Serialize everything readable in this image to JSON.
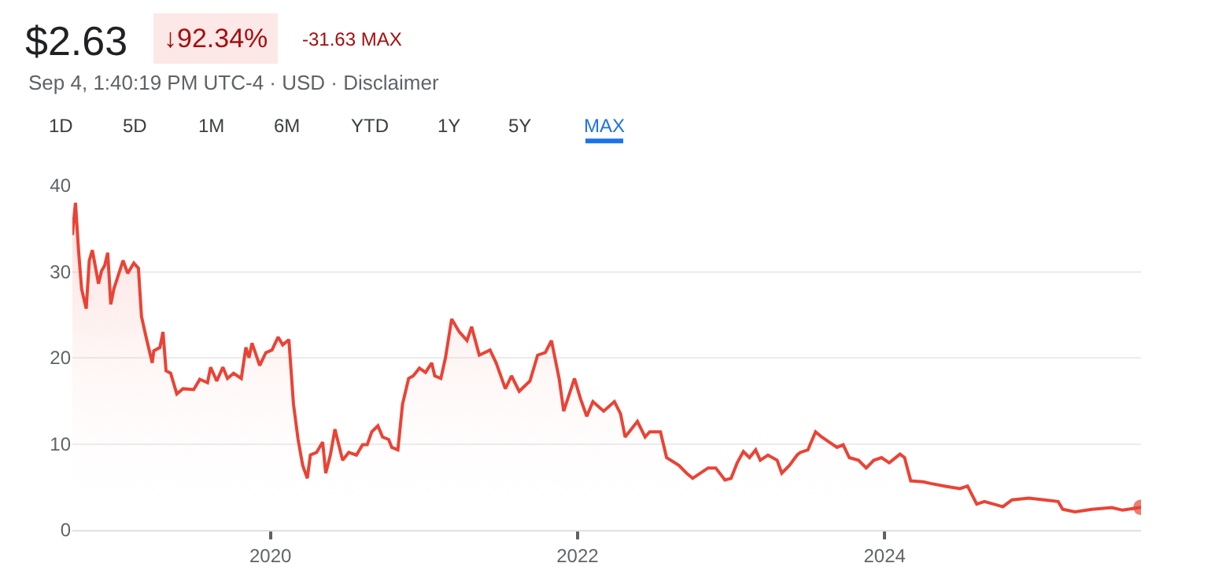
{
  "chart_data": {
    "type": "area",
    "title": "$2.63",
    "annotations": [
      "↓92.34%",
      "-31.63 MAX",
      "Sep 4, 1:40:19 PM UTC-4 · USD · Disclaimer",
      "1D",
      "5D",
      "1M",
      "6M",
      "YTD",
      "1Y",
      "5Y",
      "MAX"
    ],
    "xlim": [
      2018.71,
      2025.67
    ],
    "xticks": [
      2020,
      2022,
      2024
    ],
    "ylim": [
      0,
      40
    ],
    "yticks": [
      0,
      10,
      20,
      30,
      40
    ],
    "grid": "y",
    "legend": false,
    "series": [
      {
        "color": "#ea4335",
        "x": [
          2018.71,
          2018.73,
          2018.75,
          2018.77,
          2018.8,
          2018.82,
          2018.84,
          2018.88,
          2018.9,
          2018.92,
          2018.94,
          2018.96,
          2018.98,
          2019.04,
          2019.07,
          2019.11,
          2019.14,
          2019.16,
          2019.19,
          2019.23,
          2019.24,
          2019.28,
          2019.3,
          2019.32,
          2019.35,
          2019.39,
          2019.43,
          2019.5,
          2019.54,
          2019.59,
          2019.61,
          2019.65,
          2019.69,
          2019.72,
          2019.76,
          2019.81,
          2019.84,
          2019.86,
          2019.88,
          2019.93,
          2019.97,
          2020.01,
          2020.05,
          2020.08,
          2020.12,
          2020.15,
          2020.18,
          2020.21,
          2020.24,
          2020.26,
          2020.3,
          2020.34,
          2020.36,
          2020.39,
          2020.42,
          2020.47,
          2020.51,
          2020.56,
          2020.6,
          2020.63,
          2020.66,
          2020.7,
          2020.73,
          2020.77,
          2020.79,
          2020.83,
          2020.86,
          2020.9,
          2020.93,
          2020.97,
          2021.01,
          2021.05,
          2021.07,
          2021.11,
          2021.14,
          2021.18,
          2021.23,
          2021.28,
          2021.31,
          2021.36,
          2021.43,
          2021.47,
          2021.53,
          2021.57,
          2021.62,
          2021.69,
          2021.74,
          2021.79,
          2021.83,
          2021.88,
          2021.91,
          2021.98,
          2022.02,
          2022.06,
          2022.1,
          2022.17,
          2022.24,
          2022.28,
          2022.31,
          2022.39,
          2022.44,
          2022.47,
          2022.54,
          2022.58,
          2022.66,
          2022.71,
          2022.75,
          2022.85,
          2022.9,
          2022.96,
          2023.0,
          2023.04,
          2023.08,
          2023.12,
          2023.16,
          2023.19,
          2023.24,
          2023.3,
          2023.33,
          2023.38,
          2023.43,
          2023.45,
          2023.5,
          2023.55,
          2023.59,
          2023.64,
          2023.69,
          2023.73,
          2023.77,
          2023.83,
          2023.88,
          2023.93,
          2023.98,
          2024.03,
          2024.1,
          2024.13,
          2024.17,
          2024.25,
          2024.3,
          2024.39,
          2024.49,
          2024.54,
          2024.6,
          2024.65,
          2024.77,
          2024.83,
          2024.94,
          2025.04,
          2025.13,
          2025.16,
          2025.24,
          2025.35,
          2025.48,
          2025.55,
          2025.67
        ],
        "values": [
          34.26,
          38,
          32.5,
          28,
          25.7,
          31.3,
          32.5,
          28.6,
          30.1,
          30.7,
          32.2,
          26.2,
          28,
          31.3,
          29.8,
          31,
          30.4,
          24.8,
          22.4,
          19.4,
          20.8,
          21.2,
          23,
          18.5,
          18.2,
          15.8,
          16.4,
          16.3,
          17.5,
          17.1,
          18.9,
          17.3,
          18.9,
          17.6,
          18.2,
          17.6,
          21.2,
          20,
          21.7,
          19.1,
          20.6,
          20.9,
          22.4,
          21.5,
          22.1,
          14.6,
          10.5,
          7.5,
          6,
          8.7,
          9,
          10.2,
          6.6,
          8.7,
          11.7,
          8.1,
          9,
          8.7,
          9.9,
          9.9,
          11.4,
          12.1,
          10.8,
          10.5,
          9.6,
          9.3,
          14.6,
          17.6,
          17.9,
          18.8,
          18.3,
          19.4,
          17.9,
          17.6,
          20,
          24.5,
          23,
          22,
          23.6,
          20.3,
          20.9,
          19.4,
          16.4,
          17.9,
          16.1,
          17.3,
          20.3,
          20.6,
          22,
          17.6,
          13.8,
          17.6,
          15.2,
          13.2,
          14.9,
          13.8,
          14.9,
          13.5,
          10.8,
          12.6,
          10.8,
          11.4,
          11.4,
          8.4,
          7.5,
          6.6,
          6,
          7.2,
          7.2,
          5.8,
          6,
          7.8,
          9.1,
          8.4,
          9.3,
          8.1,
          8.7,
          8.1,
          6.6,
          7.5,
          8.7,
          9,
          9.3,
          11.4,
          10.8,
          10.2,
          9.6,
          9.9,
          8.4,
          8.1,
          7.2,
          8.1,
          8.4,
          7.8,
          8.8,
          8.4,
          5.7,
          5.6,
          5.4,
          5.1,
          4.8,
          5.1,
          3,
          3.3,
          2.7,
          3.5,
          3.7,
          3.5,
          3.3,
          2.4,
          2.1,
          2.4,
          2.6,
          2.3,
          2.63
        ]
      }
    ]
  }
}
